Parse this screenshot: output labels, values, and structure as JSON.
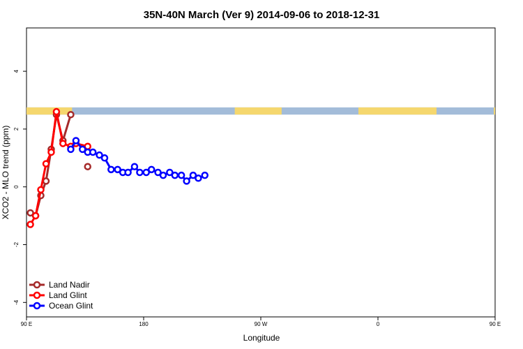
{
  "chart_data": {
    "type": "line",
    "title": "35N-40N March (Ver 9)   2014-09-06 to 2018-12-31",
    "xlabel": "Longitude",
    "ylabel": "XCO2 - MLO trend (ppm)",
    "xlim": [
      90,
      450
    ],
    "ylim": [
      -4.5,
      5.5
    ],
    "x_ticks": [
      {
        "value": 90,
        "label": "90 E"
      },
      {
        "value": 180,
        "label": "180"
      },
      {
        "value": 270,
        "label": "90 W"
      },
      {
        "value": 360,
        "label": "0"
      },
      {
        "value": 450,
        "label": "90 E"
      },
      {
        "value": 540,
        "label": "180"
      }
    ],
    "y_ticks": [
      -4,
      -2,
      0,
      2,
      4
    ],
    "landmask_band": {
      "y_range": [
        2.5,
        2.75
      ],
      "land_color": "#f5d76e",
      "ocean_color": "#a3bcd9",
      "land_segments": [
        [
          90,
          125
        ],
        [
          250,
          286
        ],
        [
          345,
          405
        ],
        [
          449,
          473
        ]
      ]
    },
    "series": [
      {
        "name": "Land Nadir",
        "color": "#a52a2a",
        "x": [
          93,
          97,
          101,
          105,
          109,
          113,
          118,
          124,
          128,
          137
        ],
        "y": [
          -0.9,
          -1.0,
          -0.3,
          0.2,
          1.3,
          2.5,
          1.6,
          2.5,
          null,
          0.7
        ]
      },
      {
        "name": "Land Glint",
        "color": "#ff0000",
        "x": [
          93,
          97,
          101,
          105,
          109,
          113,
          118,
          124,
          128,
          137
        ],
        "y": [
          -1.3,
          -1.0,
          -0.1,
          0.8,
          1.2,
          2.6,
          1.5,
          1.4,
          1.5,
          1.4
        ]
      },
      {
        "name": "Ocean Glint",
        "color": "#0000ff",
        "x": [
          124,
          128,
          133,
          137,
          141,
          146,
          150,
          155,
          160,
          164,
          168,
          173,
          177,
          182,
          186,
          191,
          195,
          200,
          204,
          209,
          213,
          218,
          222,
          227
        ],
        "y": [
          1.3,
          1.6,
          1.3,
          1.2,
          1.2,
          1.1,
          1.0,
          0.6,
          0.6,
          0.5,
          0.5,
          0.7,
          0.5,
          0.5,
          0.6,
          0.5,
          0.4,
          0.5,
          0.4,
          0.4,
          0.2,
          0.4,
          0.3,
          0.4
        ]
      }
    ],
    "legend": {
      "position": "bottom-left",
      "entries": [
        "Land Nadir",
        "Land Glint",
        "Ocean Glint"
      ]
    }
  }
}
